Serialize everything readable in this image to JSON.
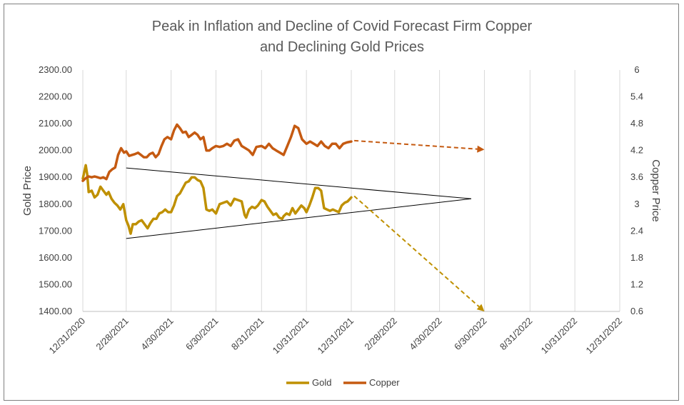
{
  "chart_data": {
    "type": "line",
    "title_lines": [
      "Peak in Inflation and Decline of Covid Forecast Firm Copper",
      "and Declining Gold Prices"
    ],
    "ylabel_left": "Gold Price",
    "ylabel_right": "Copper Price",
    "xlim": [
      "12/31/2020",
      "12/31/2022"
    ],
    "ylim_left": [
      1400,
      2300
    ],
    "ylim_right": [
      0.6,
      6
    ],
    "x_ticks": [
      "12/31/2020",
      "2/28/2021",
      "4/30/2021",
      "6/30/2021",
      "8/31/2021",
      "10/31/2021",
      "12/31/2021",
      "2/28/2022",
      "4/30/2022",
      "6/30/2022",
      "8/31/2022",
      "10/31/2022",
      "12/31/2022"
    ],
    "y_ticks_left": [
      "1400.00",
      "1500.00",
      "1600.00",
      "1700.00",
      "1800.00",
      "1900.00",
      "2000.00",
      "2100.00",
      "2200.00",
      "2300.00"
    ],
    "y_ticks_right": [
      "0.6",
      "1.2",
      "1.8",
      "2.4",
      "3",
      "3.6",
      "4.2",
      "4.8",
      "5.4",
      "6"
    ],
    "grid": "vertical",
    "legend": "bottom",
    "series": [
      {
        "name": "Gold",
        "axis": "left",
        "color": "#bf9000",
        "x": [
          "2020-12-31",
          "2021-01-04",
          "2021-01-06",
          "2021-01-08",
          "2021-01-12",
          "2021-01-16",
          "2021-01-20",
          "2021-01-24",
          "2021-01-28",
          "2021-02-01",
          "2021-02-04",
          "2021-02-08",
          "2021-02-12",
          "2021-02-16",
          "2021-02-20",
          "2021-02-24",
          "2021-02-28",
          "2021-03-03",
          "2021-03-06",
          "2021-03-09",
          "2021-03-13",
          "2021-03-17",
          "2021-03-21",
          "2021-03-25",
          "2021-03-29",
          "2021-04-02",
          "2021-04-06",
          "2021-04-10",
          "2021-04-14",
          "2021-04-18",
          "2021-04-22",
          "2021-04-26",
          "2021-04-30",
          "2021-05-04",
          "2021-05-08",
          "2021-05-12",
          "2021-05-16",
          "2021-05-20",
          "2021-05-24",
          "2021-05-28",
          "2021-06-01",
          "2021-06-05",
          "2021-06-09",
          "2021-06-13",
          "2021-06-17",
          "2021-06-21",
          "2021-06-25",
          "2021-06-30",
          "2021-07-05",
          "2021-07-10",
          "2021-07-15",
          "2021-07-20",
          "2021-07-25",
          "2021-07-30",
          "2021-08-04",
          "2021-08-08",
          "2021-08-10",
          "2021-08-14",
          "2021-08-18",
          "2021-08-22",
          "2021-08-26",
          "2021-08-31",
          "2021-09-04",
          "2021-09-08",
          "2021-09-12",
          "2021-09-16",
          "2021-09-20",
          "2021-09-24",
          "2021-09-28",
          "2021-09-30",
          "2021-10-04",
          "2021-10-08",
          "2021-10-12",
          "2021-10-16",
          "2021-10-20",
          "2021-10-24",
          "2021-10-28",
          "2021-10-31",
          "2021-11-04",
          "2021-11-08",
          "2021-11-12",
          "2021-11-16",
          "2021-11-20",
          "2021-11-24",
          "2021-11-28",
          "2021-12-02",
          "2021-12-06",
          "2021-12-10",
          "2021-12-14",
          "2021-12-18",
          "2021-12-22",
          "2021-12-26",
          "2021-12-31"
        ],
        "values": [
          1895,
          1945,
          1910,
          1845,
          1850,
          1825,
          1835,
          1865,
          1850,
          1835,
          1845,
          1820,
          1805,
          1795,
          1780,
          1800,
          1740,
          1720,
          1690,
          1725,
          1725,
          1735,
          1740,
          1725,
          1710,
          1730,
          1745,
          1745,
          1765,
          1770,
          1780,
          1770,
          1770,
          1795,
          1830,
          1840,
          1860,
          1880,
          1885,
          1900,
          1900,
          1890,
          1885,
          1860,
          1780,
          1775,
          1780,
          1765,
          1800,
          1805,
          1810,
          1795,
          1820,
          1815,
          1810,
          1760,
          1750,
          1780,
          1790,
          1785,
          1795,
          1815,
          1810,
          1790,
          1775,
          1760,
          1765,
          1750,
          1745,
          1755,
          1765,
          1760,
          1785,
          1765,
          1780,
          1795,
          1785,
          1770,
          1795,
          1825,
          1860,
          1860,
          1850,
          1785,
          1780,
          1775,
          1780,
          1775,
          1770,
          1795,
          1805,
          1810,
          1825
        ]
      },
      {
        "name": "Copper",
        "axis": "right",
        "color": "#c55a11",
        "x": [
          "2020-12-31",
          "2021-01-04",
          "2021-01-08",
          "2021-01-12",
          "2021-01-16",
          "2021-01-20",
          "2021-01-24",
          "2021-01-28",
          "2021-02-01",
          "2021-02-05",
          "2021-02-09",
          "2021-02-13",
          "2021-02-17",
          "2021-02-21",
          "2021-02-25",
          "2021-02-28",
          "2021-03-04",
          "2021-03-08",
          "2021-03-12",
          "2021-03-16",
          "2021-03-20",
          "2021-03-24",
          "2021-03-28",
          "2021-04-01",
          "2021-04-05",
          "2021-04-09",
          "2021-04-13",
          "2021-04-17",
          "2021-04-21",
          "2021-04-25",
          "2021-04-30",
          "2021-05-04",
          "2021-05-08",
          "2021-05-12",
          "2021-05-16",
          "2021-05-20",
          "2021-05-24",
          "2021-05-28",
          "2021-06-01",
          "2021-06-05",
          "2021-06-09",
          "2021-06-13",
          "2021-06-17",
          "2021-06-21",
          "2021-06-25",
          "2021-06-30",
          "2021-07-05",
          "2021-07-10",
          "2021-07-15",
          "2021-07-20",
          "2021-07-25",
          "2021-07-30",
          "2021-08-04",
          "2021-08-09",
          "2021-08-14",
          "2021-08-19",
          "2021-08-24",
          "2021-08-31",
          "2021-09-05",
          "2021-09-10",
          "2021-09-15",
          "2021-09-20",
          "2021-09-25",
          "2021-09-30",
          "2021-10-05",
          "2021-10-10",
          "2021-10-15",
          "2021-10-20",
          "2021-10-25",
          "2021-10-31",
          "2021-11-05",
          "2021-11-10",
          "2021-11-15",
          "2021-11-20",
          "2021-11-25",
          "2021-11-30",
          "2021-12-05",
          "2021-12-10",
          "2021-12-15",
          "2021-12-20",
          "2021-12-25",
          "2021-12-31"
        ],
        "values": [
          3.52,
          3.58,
          3.62,
          3.6,
          3.62,
          3.6,
          3.58,
          3.6,
          3.56,
          3.72,
          3.78,
          3.82,
          4.1,
          4.25,
          4.15,
          4.18,
          4.08,
          4.1,
          4.12,
          4.15,
          4.1,
          4.05,
          4.05,
          4.12,
          4.15,
          4.05,
          4.12,
          4.3,
          4.45,
          4.5,
          4.45,
          4.65,
          4.78,
          4.7,
          4.6,
          4.62,
          4.5,
          4.55,
          4.6,
          4.55,
          4.45,
          4.5,
          4.2,
          4.2,
          4.25,
          4.3,
          4.28,
          4.3,
          4.35,
          4.3,
          4.42,
          4.45,
          4.3,
          4.25,
          4.2,
          4.1,
          4.28,
          4.3,
          4.25,
          4.35,
          4.25,
          4.2,
          4.15,
          4.1,
          4.3,
          4.5,
          4.75,
          4.7,
          4.45,
          4.35,
          4.4,
          4.35,
          4.3,
          4.4,
          4.3,
          4.25,
          4.35,
          4.35,
          4.25,
          4.35,
          4.38,
          4.4
        ]
      }
    ],
    "annotations": [
      {
        "kind": "trendline",
        "from": [
          "2021-02-28",
          1935
        ],
        "to": [
          "2022-06-12",
          1820
        ],
        "color": "#000000",
        "dashed": false
      },
      {
        "kind": "trendline",
        "from": [
          "2021-02-28",
          1672
        ],
        "to": [
          "2022-06-12",
          1820
        ],
        "color": "#000000",
        "dashed": false
      },
      {
        "kind": "arrow",
        "axis": "right",
        "from": [
          "2022-01-04",
          4.42
        ],
        "to": [
          "2022-06-30",
          4.22
        ],
        "color": "#c55a11",
        "dashed": true
      },
      {
        "kind": "arrow",
        "axis": "left",
        "from": [
          "2022-01-04",
          1830
        ],
        "to": [
          "2022-06-30",
          1400
        ],
        "color": "#bf9000",
        "dashed": true
      }
    ]
  }
}
